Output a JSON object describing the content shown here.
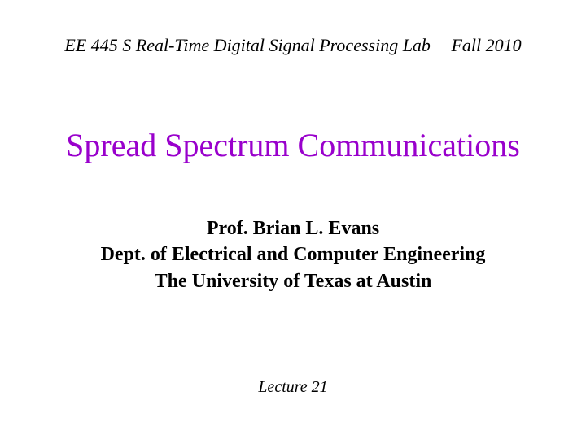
{
  "header": {
    "course": "EE 445 S Real-Time Digital Signal Processing Lab",
    "term": "Fall 2010"
  },
  "title": "Spread Spectrum Communications",
  "author": {
    "name": "Prof. Brian L. Evans",
    "dept": "Dept. of Electrical and Computer Engineering",
    "university": "The University of Texas at Austin"
  },
  "lecture": "Lecture 21",
  "colors": {
    "title_color": "#9900cc",
    "text_color": "#000000",
    "background": "#ffffff"
  },
  "typography": {
    "header_fontsize": 22,
    "header_style": "italic",
    "title_fontsize": 40,
    "author_fontsize": 24,
    "author_weight": "bold",
    "lecture_fontsize": 20,
    "lecture_style": "italic",
    "font_family": "Times New Roman"
  }
}
